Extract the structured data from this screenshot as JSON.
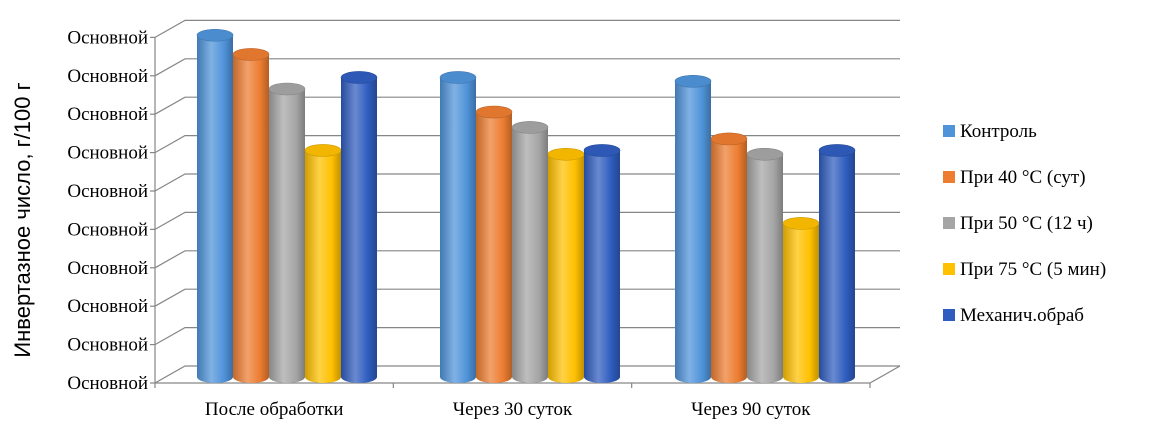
{
  "chart_data": {
    "type": "bar",
    "ylabel": "Инвертазное число, г/100 г",
    "y_tick_labels": [
      "Основной",
      "Основной",
      "Основной",
      "Основной",
      "Основной",
      "Основной",
      "Основной",
      "Основной",
      "Основной",
      "Основной"
    ],
    "ylim": [
      0,
      9
    ],
    "grid": true,
    "legend_position": "right",
    "categories": [
      "После обработки",
      "Через 30 суток",
      "Через 90 суток"
    ],
    "series": [
      {
        "name": "Контроль",
        "color": "#4f93d9",
        "values": [
          8.9,
          7.8,
          7.7
        ]
      },
      {
        "name": "При 40 °С (сут)",
        "color": "#ed7d31",
        "values": [
          8.4,
          6.9,
          6.2
        ]
      },
      {
        "name": "При 50 °С (12 ч)",
        "color": "#a5a5a5",
        "values": [
          7.5,
          6.5,
          5.8
        ]
      },
      {
        "name": "При 75 °С (5 мин)",
        "color": "#ffc000",
        "values": [
          5.9,
          5.8,
          4.0
        ]
      },
      {
        "name": "Механич.обраб",
        "color": "#2f5dbf",
        "values": [
          7.8,
          5.9,
          5.9
        ]
      }
    ]
  }
}
